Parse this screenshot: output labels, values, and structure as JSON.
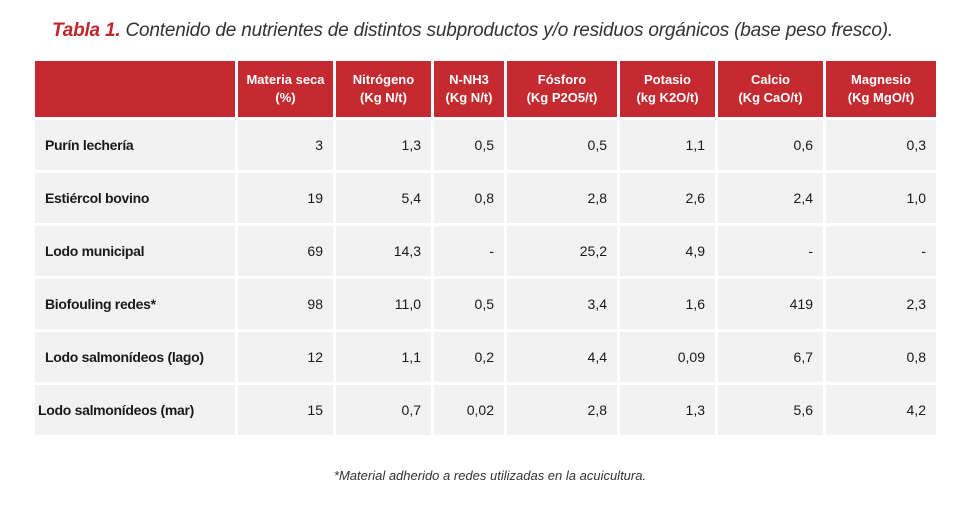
{
  "caption": {
    "lead": "Tabla 1.",
    "text": " Contenido de nutrientes de distintos subproductos y/o residuos orgánicos (base peso fresco)."
  },
  "table": {
    "columns": [
      {
        "line1": "",
        "line2": ""
      },
      {
        "line1": "Materia seca",
        "line2": "(%)"
      },
      {
        "line1": "Nitrógeno",
        "line2": "(Kg N/t)"
      },
      {
        "line1": "N-NH3",
        "line2": "(Kg N/t)"
      },
      {
        "line1": "Fósforo",
        "line2": "(Kg P2O5/t)"
      },
      {
        "line1": "Potasio",
        "line2": "(kg K2O/t)"
      },
      {
        "line1": "Calcio",
        "line2": "(Kg CaO/t)"
      },
      {
        "line1": "Magnesio",
        "line2": "(Kg MgO/t)"
      }
    ],
    "rows": [
      [
        "Purín lechería",
        "3",
        "1,3",
        "0,5",
        "0,5",
        "1,1",
        "0,6",
        "0,3"
      ],
      [
        "Estiércol bovino",
        "19",
        "5,4",
        "0,8",
        "2,8",
        "2,6",
        "2,4",
        "1,0"
      ],
      [
        "Lodo municipal",
        "69",
        "14,3",
        "-",
        "25,2",
        "4,9",
        "-",
        "-"
      ],
      [
        "Biofouling redes*",
        "98",
        "11,0",
        "0,5",
        "3,4",
        "1,6",
        "419",
        "2,3"
      ],
      [
        "Lodo salmonídeos (lago)",
        "12",
        "1,1",
        "0,2",
        "4,4",
        "0,09",
        "6,7",
        "0,8"
      ],
      [
        "Lodo salmonídeos (mar)",
        "15",
        "0,7",
        "0,02",
        "2,8",
        "1,3",
        "5,6",
        "4,2"
      ]
    ]
  },
  "footnote": "*Material adherido a redes utilizadas en la acuicultura.",
  "colors": {
    "header": "#c42a2f",
    "caption_lead": "#c0272d",
    "cell": "#f2f2f2"
  }
}
